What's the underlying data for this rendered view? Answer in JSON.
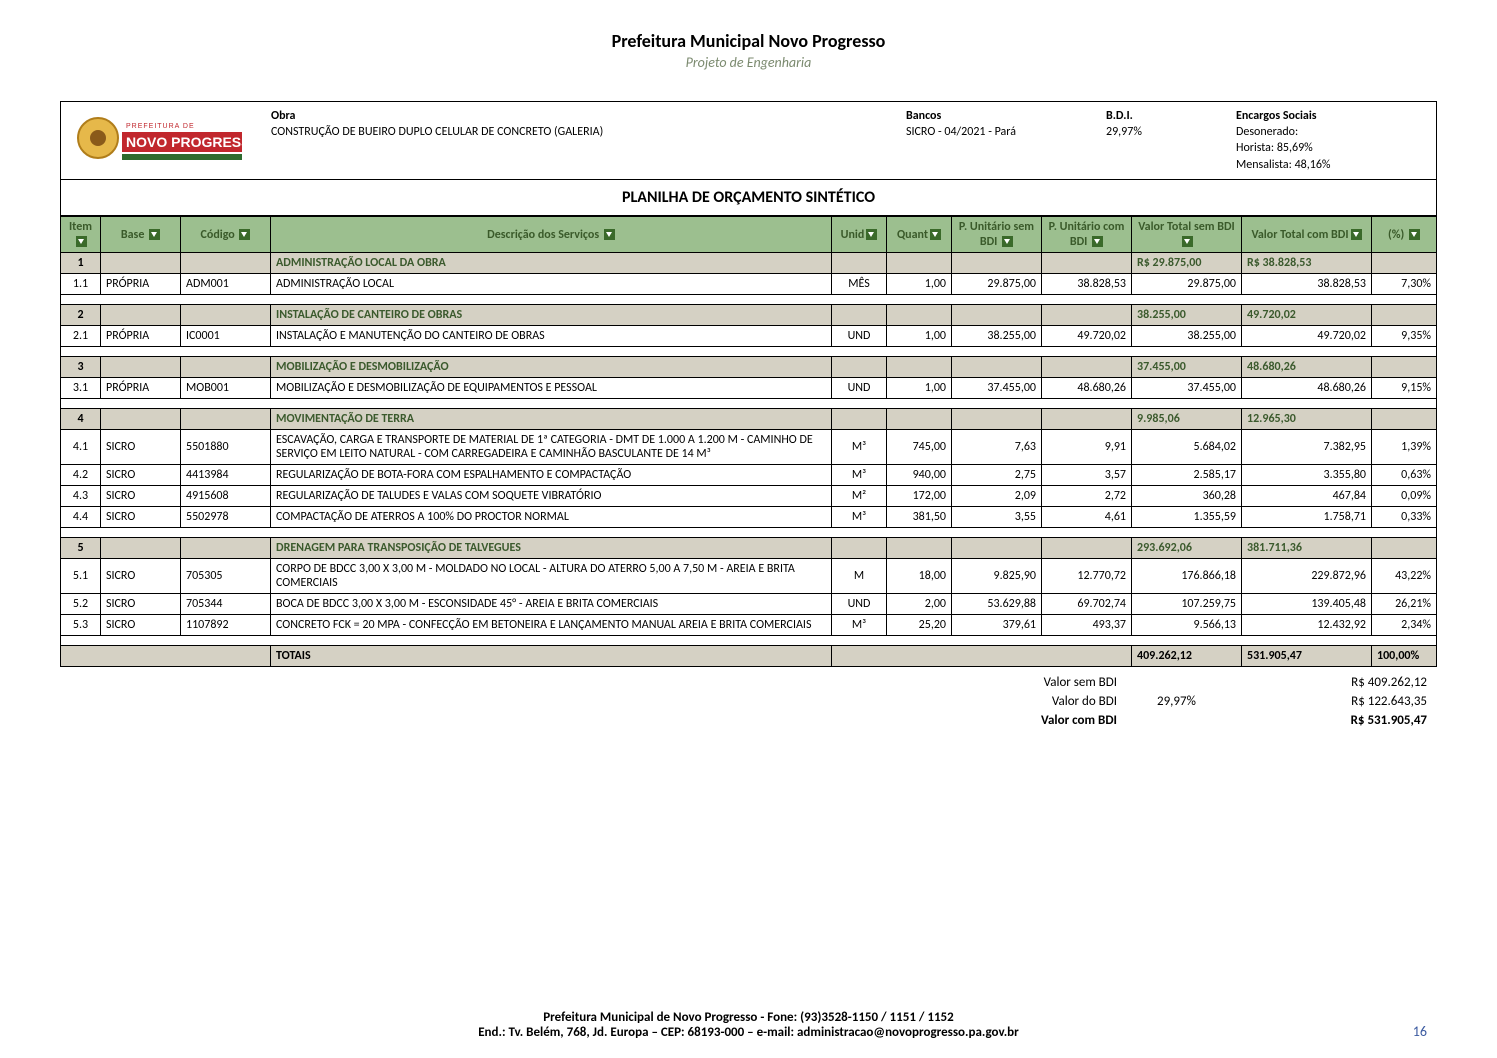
{
  "doc": {
    "title": "Prefeitura Municipal Novo Progresso",
    "subtitle": "Projeto de Engenharia"
  },
  "logo": {
    "top": "PREFEITURA DE",
    "main": "NOVO PROGRESSO"
  },
  "info": {
    "obra_label": "Obra",
    "obra_text": "CONSTRUÇÃO DE BUEIRO DUPLO CELULAR DE CONCRETO (GALERIA)",
    "bancos_label": "Bancos",
    "bancos_text": "SICRO - 04/2021 - Pará",
    "bdi_label": "B.D.I.",
    "bdi_text": "29,97%",
    "encargos_label": "Encargos Sociais",
    "encargos_l1": "Desonerado:",
    "encargos_l2": "Horista: 85,69%",
    "encargos_l3": "Mensalista: 48,16%"
  },
  "sheet_title": "PLANILHA DE ORÇAMENTO SINTÉTICO",
  "columns": {
    "item": "Item",
    "base": "Base",
    "codigo": "Código",
    "desc": "Descrição dos Serviços",
    "unid": "Unid",
    "quant": "Quant",
    "pu_sem": "P. Unitário sem BDI",
    "pu_com": "P. Unitário com BDI",
    "vt_sem": "Valor Total sem BDI",
    "vt_com": "Valor Total com BDI",
    "pct": "(%)"
  },
  "rows": [
    {
      "type": "section",
      "item": "1",
      "desc": "ADMINISTRAÇÃO LOCAL DA OBRA",
      "vt_sem": "R$ 29.875,00",
      "vt_com": "R$ 38.828,53"
    },
    {
      "type": "data",
      "item": "1.1",
      "base": "PRÓPRIA",
      "codigo": "ADM001",
      "desc": "ADMINISTRAÇÃO LOCAL",
      "unid": "MÊS",
      "quant": "1,00",
      "pu_sem": "29.875,00",
      "pu_com": "38.828,53",
      "vt_sem": "29.875,00",
      "vt_com": "38.828,53",
      "pct": "7,30%"
    },
    {
      "type": "spacer"
    },
    {
      "type": "section",
      "item": "2",
      "desc": "INSTALAÇÃO DE CANTEIRO DE OBRAS",
      "vt_sem": "38.255,00",
      "vt_com": "49.720,02"
    },
    {
      "type": "data",
      "item": "2.1",
      "base": "PRÓPRIA",
      "codigo": "IC0001",
      "desc": "INSTALAÇÃO E MANUTENÇÃO DO CANTEIRO DE OBRAS",
      "unid": "UND",
      "quant": "1,00",
      "pu_sem": "38.255,00",
      "pu_com": "49.720,02",
      "vt_sem": "38.255,00",
      "vt_com": "49.720,02",
      "pct": "9,35%"
    },
    {
      "type": "spacer"
    },
    {
      "type": "section",
      "item": "3",
      "desc": "MOBILIZAÇÃO E DESMOBILIZAÇÃO",
      "vt_sem": "37.455,00",
      "vt_com": "48.680,26"
    },
    {
      "type": "data",
      "item": "3.1",
      "base": "PRÓPRIA",
      "codigo": "MOB001",
      "desc": "MOBILIZAÇÃO E DESMOBILIZAÇÃO DE EQUIPAMENTOS E PESSOAL",
      "unid": "UND",
      "quant": "1,00",
      "pu_sem": "37.455,00",
      "pu_com": "48.680,26",
      "vt_sem": "37.455,00",
      "vt_com": "48.680,26",
      "pct": "9,15%"
    },
    {
      "type": "spacer"
    },
    {
      "type": "section",
      "item": "4",
      "desc": "MOVIMENTAÇÃO DE TERRA",
      "vt_sem": "9.985,06",
      "vt_com": "12.965,30"
    },
    {
      "type": "data",
      "item": "4.1",
      "base": "SICRO",
      "codigo": "5501880",
      "desc": "ESCAVAÇÃO, CARGA E TRANSPORTE DE MATERIAL DE 1ª CATEGORIA - DMT DE 1.000 A 1.200 M - CAMINHO DE SERVIÇO EM LEITO NATURAL - COM CARREGADEIRA E CAMINHÃO BASCULANTE DE 14 M³",
      "unid": "M³",
      "quant": "745,00",
      "pu_sem": "7,63",
      "pu_com": "9,91",
      "vt_sem": "5.684,02",
      "vt_com": "7.382,95",
      "pct": "1,39%"
    },
    {
      "type": "data",
      "item": "4.2",
      "base": "SICRO",
      "codigo": "4413984",
      "desc": "REGULARIZAÇÃO DE BOTA-FORA COM ESPALHAMENTO E COMPACTAÇÃO",
      "unid": "M³",
      "quant": "940,00",
      "pu_sem": "2,75",
      "pu_com": "3,57",
      "vt_sem": "2.585,17",
      "vt_com": "3.355,80",
      "pct": "0,63%"
    },
    {
      "type": "data",
      "item": "4.3",
      "base": "SICRO",
      "codigo": "4915608",
      "desc": "REGULARIZAÇÃO DE TALUDES E VALAS COM SOQUETE VIBRATÓRIO",
      "unid": "M²",
      "quant": "172,00",
      "pu_sem": "2,09",
      "pu_com": "2,72",
      "vt_sem": "360,28",
      "vt_com": "467,84",
      "pct": "0,09%"
    },
    {
      "type": "data",
      "item": "4.4",
      "base": "SICRO",
      "codigo": "5502978",
      "desc": "COMPACTAÇÃO DE ATERROS A 100% DO PROCTOR NORMAL",
      "unid": "M³",
      "quant": "381,50",
      "pu_sem": "3,55",
      "pu_com": "4,61",
      "vt_sem": "1.355,59",
      "vt_com": "1.758,71",
      "pct": "0,33%"
    },
    {
      "type": "spacer"
    },
    {
      "type": "section",
      "item": "5",
      "desc": "DRENAGEM PARA TRANSPOSIÇÃO DE TALVEGUES",
      "vt_sem": "293.692,06",
      "vt_com": "381.711,36"
    },
    {
      "type": "data",
      "item": "5.1",
      "base": "SICRO",
      "codigo": "705305",
      "desc": "CORPO DE BDCC 3,00 X 3,00 M - MOLDADO NO LOCAL - ALTURA DO ATERRO 5,00 A 7,50 M - AREIA E BRITA COMERCIAIS",
      "unid": "M",
      "quant": "18,00",
      "pu_sem": "9.825,90",
      "pu_com": "12.770,72",
      "vt_sem": "176.866,18",
      "vt_com": "229.872,96",
      "pct": "43,22%"
    },
    {
      "type": "data",
      "item": "5.2",
      "base": "SICRO",
      "codigo": "705344",
      "desc": "BOCA DE BDCC 3,00 X 3,00 M - ESCONSIDADE 45° - AREIA E BRITA COMERCIAIS",
      "unid": "UND",
      "quant": "2,00",
      "pu_sem": "53.629,88",
      "pu_com": "69.702,74",
      "vt_sem": "107.259,75",
      "vt_com": "139.405,48",
      "pct": "26,21%"
    },
    {
      "type": "data",
      "item": "5.3",
      "base": "SICRO",
      "codigo": "1107892",
      "desc": "CONCRETO FCK = 20 MPA - CONFECÇÃO EM BETONEIRA E LANÇAMENTO MANUAL AREIA E BRITA COMERCIAIS",
      "unid": "M³",
      "quant": "25,20",
      "pu_sem": "379,61",
      "pu_com": "493,37",
      "vt_sem": "9.566,13",
      "vt_com": "12.432,92",
      "pct": "2,34%"
    },
    {
      "type": "spacer"
    }
  ],
  "totals": {
    "label": "TOTAIS",
    "vt_sem": "409.262,12",
    "vt_com": "531.905,47",
    "pct": "100,00%"
  },
  "summary": {
    "sem_bdi_label": "Valor sem BDI",
    "sem_bdi_val": "R$ 409.262,12",
    "do_bdi_label": "Valor do BDI",
    "do_bdi_pct": "29,97%",
    "do_bdi_val": "R$ 122.643,35",
    "com_bdi_label": "Valor com BDI",
    "com_bdi_val": "R$ 531.905,47"
  },
  "footer": {
    "line1": "Prefeitura Municipal de Novo Progresso - Fone: (93)3528-1150 / 1151 / 1152",
    "line2": "End.: Tv. Belém, 768, Jd. Europa – CEP: 68193-000 – e-mail: administracao@novoprogresso.pa.gov.br",
    "page": "16"
  },
  "colors": {
    "header_bg": "#9cbf8f",
    "header_text": "#3a5a2a",
    "section_bg": "#d5d1c4",
    "section_text": "#3b5a2d",
    "subtitle": "#7b8a6f",
    "page_num": "#3b5aa0",
    "logo_red": "#c1272d"
  }
}
